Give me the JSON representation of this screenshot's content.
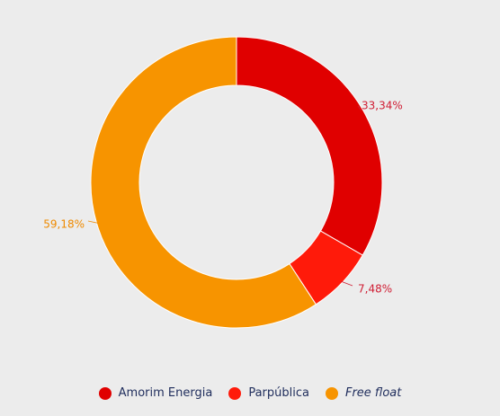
{
  "chart_data": {
    "type": "pie",
    "donut": true,
    "categories": [
      "Amorim Energia",
      "Parpública",
      "Free float"
    ],
    "values": [
      33.34,
      7.48,
      59.18
    ],
    "value_labels": [
      "33,34%",
      "7,48%",
      "59,18%"
    ],
    "colors": [
      "#e00000",
      "#ff1a0a",
      "#f79400"
    ],
    "label_colors": [
      "#d01e34",
      "#d01e34",
      "#ee8a00"
    ],
    "legend_placement": "bottom",
    "legend_italic": [
      false,
      false,
      true
    ],
    "title": "",
    "start_angle": "top, clockwise"
  }
}
